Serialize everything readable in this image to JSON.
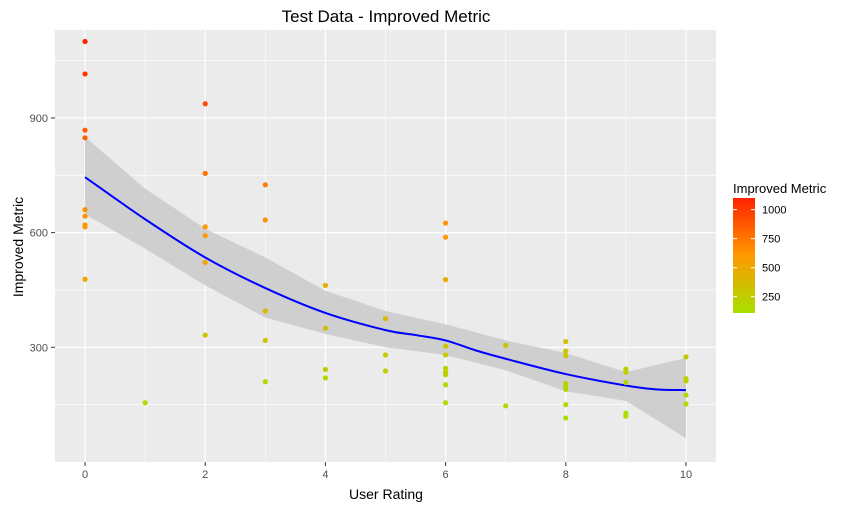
{
  "chart_data": {
    "type": "scatter",
    "title": "Test Data - Improved Metric",
    "xlabel": "User Rating",
    "ylabel": "Improved Metric",
    "xlim": [
      -0.5,
      10.5
    ],
    "ylim": [
      0,
      1130
    ],
    "xticks": [
      0,
      2,
      4,
      6,
      8,
      10
    ],
    "yticks": [
      300,
      600,
      900
    ],
    "xtick_labels": [
      "0",
      "2",
      "4",
      "6",
      "8",
      "10"
    ],
    "ytick_labels": [
      "300",
      "600",
      "900"
    ],
    "grid": true,
    "series": [
      {
        "points": [
          [
            0,
            1100
          ],
          [
            0,
            1015
          ],
          [
            0,
            868
          ],
          [
            0,
            848
          ],
          [
            0,
            660
          ],
          [
            0,
            643
          ],
          [
            0,
            620
          ],
          [
            0,
            615
          ],
          [
            0,
            478
          ],
          [
            1,
            155
          ],
          [
            2,
            937
          ],
          [
            2,
            755
          ],
          [
            2,
            615
          ],
          [
            2,
            592
          ],
          [
            2,
            522
          ],
          [
            2,
            332
          ],
          [
            3,
            725
          ],
          [
            3,
            633
          ],
          [
            3,
            395
          ],
          [
            3,
            318
          ],
          [
            3,
            210
          ],
          [
            4,
            462
          ],
          [
            4,
            350
          ],
          [
            4,
            242
          ],
          [
            4,
            220
          ],
          [
            5,
            375
          ],
          [
            5,
            280
          ],
          [
            5,
            238
          ],
          [
            6,
            625
          ],
          [
            6,
            588
          ],
          [
            6,
            477
          ],
          [
            6,
            303
          ],
          [
            6,
            280
          ],
          [
            6,
            245
          ],
          [
            6,
            235
          ],
          [
            6,
            228
          ],
          [
            6,
            202
          ],
          [
            6,
            155
          ],
          [
            7,
            305
          ],
          [
            7,
            147
          ],
          [
            8,
            315
          ],
          [
            8,
            290
          ],
          [
            8,
            278
          ],
          [
            8,
            205
          ],
          [
            8,
            198
          ],
          [
            8,
            190
          ],
          [
            8,
            150
          ],
          [
            8,
            115
          ],
          [
            9,
            243
          ],
          [
            9,
            235
          ],
          [
            9,
            208
          ],
          [
            9,
            128
          ],
          [
            9,
            120
          ],
          [
            10,
            275
          ],
          [
            10,
            218
          ],
          [
            10,
            212
          ],
          [
            10,
            175
          ],
          [
            10,
            152
          ]
        ]
      },
      {
        "type": "line",
        "smooth": true,
        "color": "#0000ff",
        "x": [
          0,
          1,
          2,
          3,
          4,
          5,
          5.5,
          6,
          6.5,
          7,
          8,
          9,
          9.5,
          10
        ],
        "y": [
          745,
          635,
          535,
          455,
          390,
          345,
          332,
          318,
          292,
          270,
          230,
          200,
          190,
          188
        ]
      },
      {
        "type": "area",
        "color": "#cccccc",
        "x": [
          0,
          1,
          2,
          3,
          4,
          5,
          6,
          7,
          8,
          9,
          10
        ],
        "upper": [
          850,
          715,
          610,
          535,
          448,
          395,
          360,
          318,
          285,
          235,
          272
        ],
        "lower": [
          648,
          558,
          462,
          378,
          335,
          300,
          280,
          240,
          185,
          160,
          62
        ]
      }
    ],
    "color_scale": {
      "title": "Improved Metric",
      "low": 110,
      "high": 1100,
      "low_color": "#a8e000",
      "mid_color": "#ff9900",
      "high_color": "#ff2200",
      "tick_values": [
        250,
        500,
        750,
        1000
      ],
      "tick_labels": [
        "250",
        "500",
        "750",
        "1000"
      ]
    },
    "colors": {
      "panel_background": "#ebebeb",
      "grid": "#ffffff"
    }
  }
}
